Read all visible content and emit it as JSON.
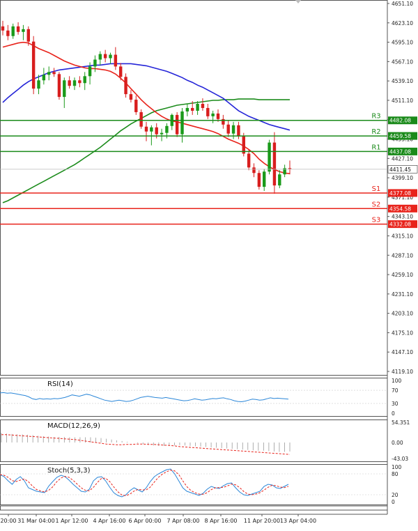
{
  "chart_data": {
    "type": "candlestick",
    "symbol_context": "index CFD, hourly bars",
    "main_panel": {
      "ylim": [
        4119.1,
        4651.1
      ],
      "y_ticks": [
        "4651.10",
        "4623.10",
        "4595.10",
        "4567.10",
        "4539.10",
        "4511.10",
        "4483.10",
        "4455.10",
        "4427.10",
        "4399.10",
        "4371.10",
        "4343.10",
        "4315.10",
        "4287.10",
        "4259.10",
        "4231.10",
        "4203.10",
        "4175.10",
        "4147.10",
        "4119.10"
      ],
      "current_price": {
        "value": 4411.45,
        "label": "4411.45"
      },
      "levels": [
        {
          "name": "R3",
          "value": 4482.08,
          "label": "4482.08",
          "color": "#1a8a1a"
        },
        {
          "name": "R2",
          "value": 4459.58,
          "label": "4459.58",
          "color": "#1a8a1a"
        },
        {
          "name": "R1",
          "value": 4437.08,
          "label": "4437.08",
          "color": "#1a8a1a"
        },
        {
          "name": "S1",
          "value": 4377.08,
          "label": "4377.08",
          "color": "#e8231b"
        },
        {
          "name": "S2",
          "value": 4354.58,
          "label": "4354.58",
          "color": "#e8231b"
        },
        {
          "name": "S3",
          "value": 4332.08,
          "label": "4332.08",
          "color": "#e8231b"
        }
      ],
      "candles": [
        {
          "o": 4618,
          "h": 4626,
          "l": 4605,
          "c": 4612
        },
        {
          "o": 4612,
          "h": 4620,
          "l": 4598,
          "c": 4604
        },
        {
          "o": 4604,
          "h": 4622,
          "l": 4600,
          "c": 4618
        },
        {
          "o": 4618,
          "h": 4624,
          "l": 4606,
          "c": 4610
        },
        {
          "o": 4610,
          "h": 4620,
          "l": 4598,
          "c": 4614
        },
        {
          "o": 4614,
          "h": 4618,
          "l": 4590,
          "c": 4596
        },
        {
          "o": 4596,
          "h": 4604,
          "l": 4520,
          "c": 4528
        },
        {
          "o": 4528,
          "h": 4548,
          "l": 4520,
          "c": 4540
        },
        {
          "o": 4540,
          "h": 4558,
          "l": 4534,
          "c": 4548
        },
        {
          "o": 4548,
          "h": 4560,
          "l": 4540,
          "c": 4552
        },
        {
          "o": 4552,
          "h": 4558,
          "l": 4545,
          "c": 4549
        },
        {
          "o": 4549,
          "h": 4552,
          "l": 4512,
          "c": 4516
        },
        {
          "o": 4516,
          "h": 4544,
          "l": 4500,
          "c": 4540
        },
        {
          "o": 4540,
          "h": 4546,
          "l": 4528,
          "c": 4532
        },
        {
          "o": 4532,
          "h": 4544,
          "l": 4526,
          "c": 4540
        },
        {
          "o": 4540,
          "h": 4546,
          "l": 4530,
          "c": 4536
        },
        {
          "o": 4536,
          "h": 4552,
          "l": 4526,
          "c": 4546
        },
        {
          "o": 4546,
          "h": 4566,
          "l": 4534,
          "c": 4560
        },
        {
          "o": 4560,
          "h": 4576,
          "l": 4552,
          "c": 4570
        },
        {
          "o": 4570,
          "h": 4582,
          "l": 4562,
          "c": 4578
        },
        {
          "o": 4578,
          "h": 4584,
          "l": 4566,
          "c": 4572
        },
        {
          "o": 4572,
          "h": 4580,
          "l": 4564,
          "c": 4577
        },
        {
          "o": 4577,
          "h": 4588,
          "l": 4555,
          "c": 4560
        },
        {
          "o": 4560,
          "h": 4565,
          "l": 4540,
          "c": 4545
        },
        {
          "o": 4545,
          "h": 4550,
          "l": 4515,
          "c": 4520
        },
        {
          "o": 4520,
          "h": 4526,
          "l": 4508,
          "c": 4512
        },
        {
          "o": 4512,
          "h": 4518,
          "l": 4490,
          "c": 4494
        },
        {
          "o": 4494,
          "h": 4498,
          "l": 4470,
          "c": 4473
        },
        {
          "o": 4473,
          "h": 4480,
          "l": 4452,
          "c": 4466
        },
        {
          "o": 4466,
          "h": 4475,
          "l": 4446,
          "c": 4472
        },
        {
          "o": 4472,
          "h": 4478,
          "l": 4456,
          "c": 4462
        },
        {
          "o": 4462,
          "h": 4470,
          "l": 4452,
          "c": 4464
        },
        {
          "o": 4464,
          "h": 4478,
          "l": 4456,
          "c": 4474
        },
        {
          "o": 4474,
          "h": 4492,
          "l": 4468,
          "c": 4490
        },
        {
          "o": 4490,
          "h": 4494,
          "l": 4458,
          "c": 4462
        },
        {
          "o": 4462,
          "h": 4500,
          "l": 4450,
          "c": 4495
        },
        {
          "o": 4495,
          "h": 4506,
          "l": 4488,
          "c": 4500
        },
        {
          "o": 4500,
          "h": 4510,
          "l": 4490,
          "c": 4496
        },
        {
          "o": 4496,
          "h": 4510,
          "l": 4490,
          "c": 4506
        },
        {
          "o": 4506,
          "h": 4514,
          "l": 4496,
          "c": 4500
        },
        {
          "o": 4500,
          "h": 4506,
          "l": 4484,
          "c": 4488
        },
        {
          "o": 4488,
          "h": 4496,
          "l": 4478,
          "c": 4492
        },
        {
          "o": 4492,
          "h": 4498,
          "l": 4480,
          "c": 4484
        },
        {
          "o": 4484,
          "h": 4490,
          "l": 4470,
          "c": 4476
        },
        {
          "o": 4476,
          "h": 4482,
          "l": 4458,
          "c": 4463
        },
        {
          "o": 4463,
          "h": 4480,
          "l": 4455,
          "c": 4475
        },
        {
          "o": 4475,
          "h": 4480,
          "l": 4455,
          "c": 4460
        },
        {
          "o": 4460,
          "h": 4464,
          "l": 4430,
          "c": 4434
        },
        {
          "o": 4434,
          "h": 4440,
          "l": 4410,
          "c": 4414
        },
        {
          "o": 4414,
          "h": 4420,
          "l": 4400,
          "c": 4406
        },
        {
          "o": 4406,
          "h": 4410,
          "l": 4382,
          "c": 4386
        },
        {
          "o": 4386,
          "h": 4412,
          "l": 4380,
          "c": 4408
        },
        {
          "o": 4408,
          "h": 4454,
          "l": 4404,
          "c": 4450
        },
        {
          "o": 4450,
          "h": 4465,
          "l": 4376,
          "c": 4388
        },
        {
          "o": 4388,
          "h": 4410,
          "l": 4384,
          "c": 4404
        },
        {
          "o": 4404,
          "h": 4418,
          "l": 4400,
          "c": 4413
        },
        {
          "o": 4413,
          "h": 4424,
          "l": 4404,
          "c": 4412
        }
      ],
      "ma_red": [
        4588,
        4590,
        4592,
        4594,
        4595,
        4594,
        4590,
        4586,
        4583,
        4580,
        4576,
        4572,
        4568,
        4565,
        4562,
        4560,
        4558,
        4557,
        4557,
        4556,
        4555,
        4553,
        4549,
        4543,
        4536,
        4528,
        4520,
        4512,
        4505,
        4499,
        4493,
        4488,
        4484,
        4481,
        4480,
        4478,
        4476,
        4474,
        4472,
        4470,
        4468,
        4466,
        4463,
        4459,
        4455,
        4452,
        4449,
        4445,
        4440,
        4434,
        4426,
        4420,
        4415,
        4411,
        4408,
        4406,
        4405
      ],
      "ma_blue": [
        4508,
        4515,
        4521,
        4527,
        4533,
        4538,
        4542,
        4545,
        4548,
        4551,
        4553,
        4555,
        4556,
        4557,
        4558,
        4559,
        4560,
        4561,
        4562,
        4562,
        4563,
        4564,
        4564,
        4564,
        4564,
        4564,
        4563,
        4562,
        4561,
        4559,
        4557,
        4555,
        4553,
        4550,
        4547,
        4544,
        4540,
        4537,
        4533,
        4530,
        4526,
        4522,
        4518,
        4514,
        4508,
        4502,
        4496,
        4492,
        4488,
        4485,
        4482,
        4479,
        4476,
        4474,
        4472,
        4470,
        4468
      ],
      "ma_green": [
        4363,
        4366,
        4370,
        4374,
        4378,
        4382,
        4386,
        4390,
        4394,
        4398,
        4402,
        4406,
        4410,
        4414,
        4418,
        4423,
        4428,
        4433,
        4438,
        4443,
        4449,
        4455,
        4461,
        4467,
        4472,
        4477,
        4481,
        4485,
        4489,
        4493,
        4496,
        4498,
        4500,
        4502,
        4504,
        4505,
        4506,
        4507,
        4508,
        4509,
        4510,
        4511,
        4511,
        4512,
        4512,
        4512,
        4513,
        4513,
        4513,
        4513,
        4512,
        4512,
        4512,
        4512,
        4512,
        4512,
        4512
      ]
    },
    "rsi": {
      "label": "RSI(14)",
      "ticks": [
        "100",
        "70",
        "30",
        "0"
      ],
      "values": [
        62,
        63,
        61,
        62,
        60,
        58,
        56,
        54,
        50,
        44,
        42,
        45,
        43,
        44,
        43,
        45,
        44,
        46,
        48,
        52,
        56,
        54,
        52,
        55,
        58,
        56,
        52,
        48,
        44,
        40,
        38,
        36,
        38,
        40,
        38,
        36,
        37,
        40,
        44,
        48,
        50,
        52,
        50,
        48,
        47,
        46,
        48,
        46,
        44,
        42,
        40,
        38,
        39,
        41,
        44,
        42,
        40,
        41,
        43,
        45,
        44,
        46,
        47,
        44,
        42,
        38,
        36,
        35,
        37,
        40,
        43,
        42,
        40,
        41,
        44,
        47,
        45,
        46,
        45,
        44,
        43
      ]
    },
    "macd": {
      "label": "MACD(12,26,9)",
      "ticks": [
        "54.351",
        "0.00",
        "-43.03"
      ],
      "hist": [
        26,
        24,
        23,
        22,
        22,
        21,
        20,
        18,
        17,
        16,
        15,
        15,
        15,
        14,
        14,
        14,
        14,
        14,
        13,
        12,
        10,
        8,
        6,
        4,
        2,
        0,
        -2,
        -4,
        -6,
        -8,
        -9,
        -9,
        -8,
        -8,
        -7,
        -8,
        -9,
        -10,
        -11,
        -12,
        -13,
        -14,
        -15,
        -16,
        -17,
        -18,
        -19,
        -20,
        -21,
        -22,
        -22,
        -23,
        -24,
        -25,
        -25,
        -24
      ],
      "signal": [
        21,
        21,
        20,
        19,
        18,
        17,
        16,
        15,
        14,
        13,
        12,
        11,
        10,
        9,
        8,
        6,
        4,
        2,
        0,
        -2,
        -4,
        -5,
        -6,
        -6,
        -5,
        -5,
        -4,
        -4,
        -5,
        -5,
        -6,
        -7,
        -8,
        -9,
        -11,
        -12,
        -13,
        -14,
        -15,
        -16,
        -17,
        -18,
        -19,
        -20,
        -21,
        -22,
        -23,
        -24,
        -25,
        -26,
        -27,
        -28,
        -29,
        -30,
        -31,
        -32
      ]
    },
    "stoch": {
      "label": "Stoch(5,3,3)",
      "ticks": [
        "100",
        "80",
        "20",
        "0"
      ],
      "k": [
        78,
        72,
        60,
        50,
        64,
        72,
        60,
        40,
        35,
        30,
        28,
        26,
        45,
        58,
        70,
        76,
        72,
        62,
        50,
        40,
        30,
        28,
        36,
        60,
        70,
        72,
        60,
        42,
        26,
        18,
        14,
        20,
        32,
        40,
        34,
        28,
        40,
        58,
        72,
        80,
        86,
        92,
        94,
        80,
        60,
        40,
        30,
        26,
        22,
        18,
        24,
        36,
        44,
        40,
        38,
        46,
        52,
        54,
        40,
        28,
        20,
        18,
        22,
        26,
        30,
        44,
        50,
        48,
        40,
        38,
        44,
        50
      ]
    },
    "x_labels": [
      "20:00",
      "31 Mar 04:00",
      "1 Apr 12:00",
      "4 Apr 16:00",
      "6 Apr 00:00",
      "7 Apr 08:00",
      "8 Apr 16:00",
      "11 Apr 20:00",
      "13 Apr 04:00"
    ],
    "colors": {
      "bull": "#1a9a1a",
      "bear": "#d81e1e",
      "ma_red": "#e8231b",
      "ma_blue": "#2525d8",
      "ma_green": "#1c8c1c",
      "osc_blue": "#2a86d8",
      "osc_red": "#e8231b",
      "level_green": "#1a8a1a",
      "level_red": "#e8231b"
    }
  }
}
